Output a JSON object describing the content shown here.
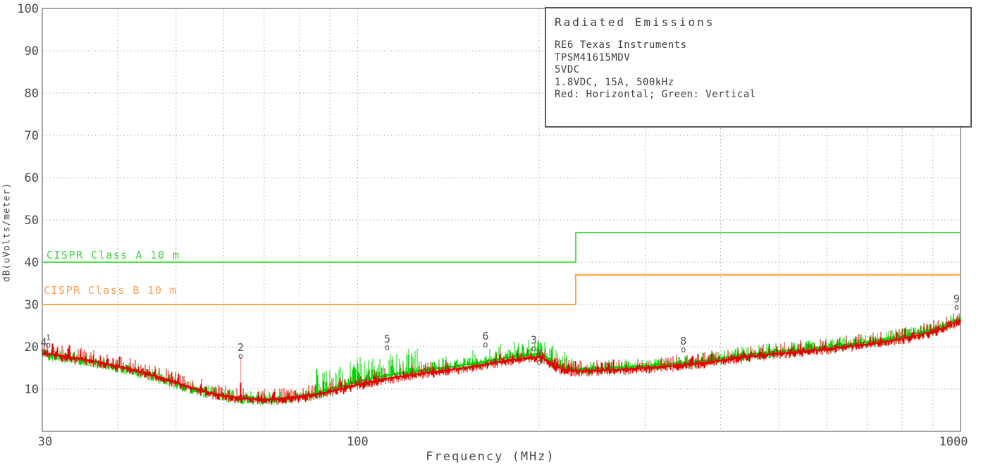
{
  "title_box": {
    "title": "Radiated Emissions",
    "lines": [
      "RE6 Texas Instruments",
      "TPSM41615MDV",
      "5VDC",
      "1.8VDC, 15A, 500kHz",
      "Red: Horizontal; Green: Vertical"
    ]
  },
  "chart_data": {
    "type": "line",
    "title": "Radiated Emissions",
    "xlabel": "Frequency (MHz)",
    "ylabel": "dB(uVolts/meter)",
    "x_scale": "log",
    "xlim": [
      30,
      1000
    ],
    "ylim": [
      0,
      100
    ],
    "grid": true,
    "x_ticks": [
      {
        "value": 30,
        "label": "30"
      },
      {
        "value": 100,
        "label": "100"
      },
      {
        "value": 1000,
        "label": "1000"
      }
    ],
    "y_ticks": [
      {
        "value": 10,
        "label": "10"
      },
      {
        "value": 20,
        "label": "20"
      },
      {
        "value": 30,
        "label": "30"
      },
      {
        "value": 40,
        "label": "40"
      },
      {
        "value": 50,
        "label": "50"
      },
      {
        "value": 60,
        "label": "60"
      },
      {
        "value": 70,
        "label": "70"
      },
      {
        "value": 80,
        "label": "80"
      },
      {
        "value": 90,
        "label": "90"
      },
      {
        "value": 100,
        "label": "100"
      }
    ],
    "x_gridlines": [
      40,
      50,
      60,
      70,
      80,
      90,
      100,
      200,
      300,
      400,
      500,
      600,
      700,
      800,
      900
    ],
    "y_gridlines": [
      10,
      20,
      30,
      40,
      50,
      60,
      70,
      80,
      90
    ],
    "limits": [
      {
        "label": "CISPR Class A 10 m",
        "color": "#4de04d",
        "points": [
          [
            30,
            40
          ],
          [
            230,
            40
          ],
          [
            230,
            47
          ],
          [
            1000,
            47
          ]
        ]
      },
      {
        "label": "CISPR Class B 10 m",
        "color": "#ffa64d",
        "points": [
          [
            30,
            30
          ],
          [
            230,
            30
          ],
          [
            230,
            37
          ],
          [
            1000,
            37
          ]
        ]
      }
    ],
    "series": [
      {
        "name": "Vertical",
        "color": "#00d800",
        "seed": 77,
        "down_amp": 1.4,
        "spike_bands": [
          [
            30,
            85,
            1.6
          ],
          [
            85,
            128,
            5.5
          ],
          [
            128,
            155,
            2.6
          ],
          [
            155,
            230,
            3.8
          ],
          [
            230,
            420,
            1.7
          ],
          [
            420,
            1000,
            2.0
          ]
        ],
        "env": [
          [
            30,
            18.2
          ],
          [
            34,
            17.1
          ],
          [
            38,
            15.9
          ],
          [
            42,
            14.5
          ],
          [
            46,
            13.0
          ],
          [
            50,
            11.3
          ],
          [
            54,
            9.9
          ],
          [
            58,
            8.8
          ],
          [
            62,
            8.1
          ],
          [
            66,
            7.7
          ],
          [
            70,
            7.5
          ],
          [
            75,
            7.7
          ],
          [
            80,
            8.2
          ],
          [
            85,
            8.9
          ],
          [
            90,
            9.8
          ],
          [
            95,
            10.8
          ],
          [
            100,
            11.7
          ],
          [
            106,
            12.5
          ],
          [
            112,
            13.2
          ],
          [
            118,
            13.7
          ],
          [
            125,
            14.1
          ],
          [
            135,
            14.7
          ],
          [
            145,
            15.3
          ],
          [
            155,
            15.9
          ],
          [
            165,
            16.6
          ],
          [
            175,
            17.2
          ],
          [
            185,
            17.7
          ],
          [
            195,
            18.1
          ],
          [
            201,
            18.2
          ],
          [
            206,
            17.4
          ],
          [
            212,
            15.9
          ],
          [
            220,
            15.0
          ],
          [
            230,
            14.6
          ],
          [
            245,
            14.7
          ],
          [
            260,
            14.9
          ],
          [
            280,
            15.1
          ],
          [
            300,
            15.4
          ],
          [
            325,
            15.7
          ],
          [
            350,
            16.1
          ],
          [
            375,
            16.6
          ],
          [
            400,
            17.2
          ],
          [
            430,
            17.8
          ],
          [
            460,
            18.3
          ],
          [
            500,
            18.8
          ],
          [
            540,
            19.2
          ],
          [
            580,
            19.7
          ],
          [
            620,
            20.1
          ],
          [
            660,
            20.6
          ],
          [
            700,
            21.0
          ],
          [
            750,
            21.6
          ],
          [
            800,
            22.3
          ],
          [
            850,
            23.1
          ],
          [
            900,
            24.0
          ],
          [
            940,
            24.9
          ],
          [
            970,
            25.8
          ],
          [
            1000,
            26.7
          ]
        ]
      },
      {
        "name": "Horizontal",
        "color": "#e60000",
        "seed": 13,
        "down_amp": 1.3,
        "spike_bands": [
          [
            30,
            1000,
            2.6
          ]
        ],
        "env": [
          [
            30,
            18.4
          ],
          [
            34,
            17.3
          ],
          [
            38,
            16.0
          ],
          [
            42,
            14.6
          ],
          [
            46,
            13.1
          ],
          [
            50,
            11.4
          ],
          [
            54,
            9.9
          ],
          [
            58,
            8.7
          ],
          [
            62,
            8.0
          ],
          [
            66,
            7.6
          ],
          [
            70,
            7.4
          ],
          [
            75,
            7.6
          ],
          [
            80,
            8.0
          ],
          [
            85,
            8.6
          ],
          [
            90,
            9.3
          ],
          [
            95,
            10.1
          ],
          [
            100,
            10.9
          ],
          [
            106,
            11.7
          ],
          [
            112,
            12.4
          ],
          [
            118,
            12.9
          ],
          [
            125,
            13.4
          ],
          [
            135,
            14.0
          ],
          [
            145,
            14.6
          ],
          [
            155,
            15.2
          ],
          [
            165,
            15.9
          ],
          [
            175,
            16.5
          ],
          [
            185,
            17.0
          ],
          [
            195,
            17.4
          ],
          [
            201,
            17.5
          ],
          [
            206,
            16.7
          ],
          [
            212,
            15.3
          ],
          [
            220,
            14.5
          ],
          [
            230,
            14.1
          ],
          [
            245,
            14.2
          ],
          [
            260,
            14.4
          ],
          [
            280,
            14.6
          ],
          [
            300,
            14.9
          ],
          [
            325,
            15.2
          ],
          [
            350,
            15.6
          ],
          [
            375,
            16.1
          ],
          [
            400,
            16.7
          ],
          [
            430,
            17.3
          ],
          [
            460,
            17.8
          ],
          [
            500,
            18.3
          ],
          [
            540,
            18.7
          ],
          [
            580,
            19.2
          ],
          [
            620,
            19.6
          ],
          [
            660,
            20.1
          ],
          [
            700,
            20.5
          ],
          [
            750,
            21.1
          ],
          [
            800,
            21.8
          ],
          [
            850,
            22.6
          ],
          [
            900,
            23.5
          ],
          [
            940,
            24.4
          ],
          [
            970,
            25.3
          ],
          [
            1000,
            26.2
          ]
        ]
      }
    ],
    "spike_event": {
      "series": "Horizontal",
      "freq": 64,
      "top_db": 17.5,
      "solid_top_db": 11.5,
      "base_db": 7.2,
      "faint_color": "#ff9999",
      "solid_color": "#e60000"
    },
    "markers": [
      {
        "n": "4",
        "f": 30.15,
        "db": 19.0
      },
      {
        "n": "1",
        "f": 30.7,
        "db": 20.4,
        "small": true
      },
      {
        "n": "2",
        "f": 64,
        "db": 17.8
      },
      {
        "n": "5",
        "f": 112,
        "db": 19.8
      },
      {
        "n": "6",
        "f": 163,
        "db": 20.5
      },
      {
        "n": "3",
        "f": 196,
        "db": 19.6
      },
      {
        "n": "7",
        "f": 200,
        "db": 16.3
      },
      {
        "n": "8",
        "f": 347,
        "db": 19.3
      },
      {
        "n": "9",
        "f": 985,
        "db": 29.3
      }
    ],
    "colors": {
      "grid": "#a8a8a8",
      "border": "#888888",
      "text": "#4a4a4a"
    }
  }
}
